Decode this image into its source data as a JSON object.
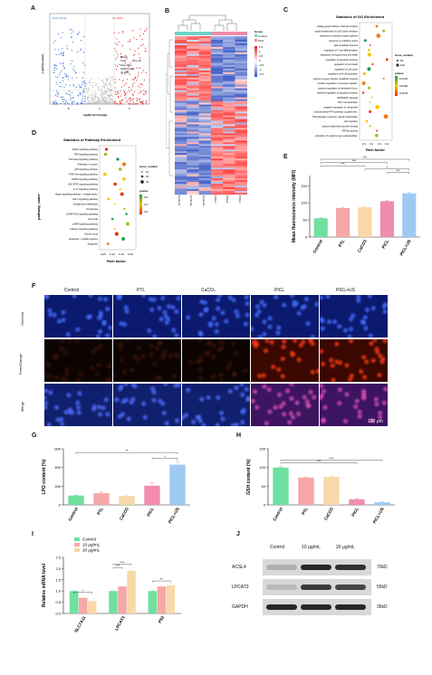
{
  "panels": {
    "A": "A",
    "B": "B",
    "C": "C",
    "D": "D",
    "E": "E",
    "F": "F",
    "G": "G",
    "H": "H",
    "I": "I",
    "J": "J"
  },
  "volcano": {
    "down_label": "Down (841)",
    "up_label": "Up (805)",
    "legend": [
      "Control",
      "Treat",
      "Down (841)",
      "NoDiff (14190)",
      "Up (805)"
    ],
    "legend_treat": "PICL+US",
    "xlabel": "log2(Fold Change)",
    "ylabel": "-Log10(p-value)",
    "xticks": [
      "-5",
      "0",
      "5"
    ],
    "colors": {
      "down": "#3b6fd8",
      "up": "#e03030",
      "nodiff": "#bdbdbd"
    }
  },
  "heatmap": {
    "columns": [
      "Control1",
      "Control2",
      "Control3",
      "PICL1",
      "PICL2",
      "PICL3"
    ],
    "group_title": "Group",
    "groups": [
      {
        "name": "Control",
        "color": "#6fd3c6"
      },
      {
        "name": "PICL",
        "color": "#f08aa8"
      }
    ],
    "scale_labels": [
      "1.5",
      "1",
      "0.5",
      "0",
      "-0.5",
      "-1",
      "-1.5"
    ]
  },
  "go": {
    "title": "Statistics of GO Enrichment",
    "terms": [
      "voltage-gated calcium channel complex",
      "signal transduction by p53 class mediator",
      "response to reactive oxygen species",
      "response to oxidative stress",
      "lipid metabolic process",
      "regulation of T cell differentiation",
      "regulation of programmed cell death",
      "regulation of apoptotic process",
      "regulation of cell death",
      "regulation of cell cycle",
      "regulation of B cell activation",
      "reactive oxygen species metabolic process",
      "positive regulation of receptor signalin.",
      "positive regulation of interleukin-6 pro.",
      "positive regulation of apoptotic process",
      "p53/MAPK cascade",
      "NF-T cell activation",
      "negative regulation of cell growth",
      "mitochondrial ATP synthesis coupled elec.",
      "DNA damage response, signal transduction",
      "cell migration",
      "calcium-dependent protein binding",
      "ATPase activity",
      "activation of cysteine-type endopeptidas."
    ],
    "xlabel": "Rich factor",
    "xticks": [
      "0.1",
      "0.2",
      "0.3",
      "0.4"
    ],
    "legend_title_size": "Gene_number",
    "legend_size": [
      "50",
      "100"
    ],
    "legend_title_color": "pvalue",
    "legend_color": [
      "0.0135",
      "0.0090",
      "0.0045"
    ]
  },
  "kegg": {
    "title": "Statistics of Pathway Enrichment",
    "terms": [
      "VEGF signaling pathway",
      "TNF signaling pathway",
      "TGF-beta signaling pathway",
      "Pathways in cancer",
      "p53 signaling pathway",
      "PI3K-Akt signaling pathway",
      "MAPK signaling pathway",
      "JAK-STAT signaling pathway",
      "IL-17 signaling pathway",
      "Hippo signaling pathway - multiple speci.",
      "HIF-1 signaling pathway",
      "Glutathione metabolism",
      "Ferroptosis",
      "cGMP-PKG signaling pathway",
      "Cell cycle",
      "cAMP signaling pathway",
      "Calcium signaling pathway",
      "Cancer cycle",
      "Apoptosis - multiple species",
      "Apoptosis"
    ],
    "xlabel": "Rich factor",
    "ylabel": "pathway_name",
    "xticks": [
      "0.05",
      "0.10",
      "0.15",
      "0.20"
    ],
    "legend_title_size": "Gene_number",
    "legend_size": [
      "10",
      "20",
      "40"
    ],
    "legend_title_color": "pvalue",
    "legend_color": [
      "0.6",
      "0.4",
      "0.2"
    ]
  },
  "chart_data": [
    {
      "panel": "E",
      "type": "bar",
      "categories": [
        "Control",
        "PTL",
        "CaCO3",
        "PICL",
        "PICL+US"
      ],
      "values": [
        55,
        85,
        87,
        105,
        128
      ],
      "errors": [
        2,
        2,
        2,
        3,
        3
      ],
      "ylabel": "Mean fluorescence intensity (MFI)",
      "ylim": [
        0,
        180
      ],
      "yticks": [
        0,
        50,
        100,
        150
      ],
      "colors": [
        "#6fe0a0",
        "#f6a7a7",
        "#f8d8a8",
        "#f18bb0",
        "#9ecaf2"
      ],
      "significance": [
        "***",
        "***",
        "***",
        "*",
        "***"
      ]
    },
    {
      "panel": "G",
      "type": "bar",
      "categories": [
        "Control",
        "PTL",
        "CaCO3",
        "PICL",
        "PICL+US"
      ],
      "values": [
        100,
        125,
        95,
        205,
        430
      ],
      "errors": [
        5,
        15,
        5,
        30,
        40
      ],
      "ylabel": "LPO content (%)",
      "ylim": [
        0,
        600
      ],
      "yticks": [
        0,
        200,
        400,
        600
      ],
      "colors": [
        "#6fe0a0",
        "#f6a7a7",
        "#f8d8a8",
        "#f18bb0",
        "#9ecaf2"
      ],
      "significance": [
        "**",
        "*"
      ]
    },
    {
      "panel": "H",
      "type": "bar",
      "categories": [
        "Control",
        "PTL",
        "CaCO3",
        "PICL",
        "PICL+US"
      ],
      "values": [
        100,
        73,
        75,
        15,
        7
      ],
      "errors": [
        3,
        2,
        4,
        2,
        1
      ],
      "ylabel": "GSH content (%)",
      "ylim": [
        0,
        150
      ],
      "yticks": [
        0,
        50,
        100,
        150
      ],
      "colors": [
        "#6fe0a0",
        "#f6a7a7",
        "#f8d8a8",
        "#f18bb0",
        "#9ecaf2"
      ],
      "significance": [
        "***",
        "***"
      ]
    },
    {
      "panel": "I",
      "type": "bar",
      "categories": [
        "SLC7A11",
        "LPCAT3",
        "P53"
      ],
      "series": [
        {
          "name": "Control",
          "values": [
            1.0,
            1.0,
            1.0
          ],
          "color": "#6fe0a0"
        },
        {
          "name": "10 μg/mL",
          "values": [
            0.7,
            1.2,
            1.2
          ],
          "color": "#f6a7a7"
        },
        {
          "name": "20 μg/mL",
          "values": [
            0.55,
            1.9,
            1.25
          ],
          "color": "#f8d8a8"
        }
      ],
      "ylabel": "Relative mRNA level",
      "ylim": [
        0,
        2.5
      ],
      "yticks": [
        0,
        0.5,
        1.0,
        1.5,
        2.0,
        2.5
      ],
      "significance": [
        "*",
        "***",
        "***",
        "**"
      ]
    }
  ],
  "microscopy": {
    "columns": [
      "Control",
      "PTL",
      "CaCO₃",
      "PICL",
      "PICL+US"
    ],
    "rows": [
      "Hoechst",
      "FerroOrange",
      "Merge"
    ],
    "scalebar": "100 μm"
  },
  "western": {
    "columns": [
      "Control",
      "10 μg/mL",
      "20 μg/mL"
    ],
    "rows": [
      {
        "name": "ACSL4",
        "kd": "70kD"
      },
      {
        "name": "LPCAT3",
        "kd": "55kD"
      },
      {
        "name": "GAPDH",
        "kd": "36kD"
      }
    ]
  }
}
